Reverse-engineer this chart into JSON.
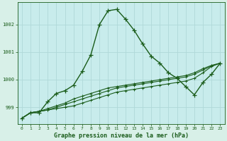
{
  "background_color": "#d8f0e8",
  "plot_bg_color": "#c8ecec",
  "grid_color": "#b0d8d8",
  "line_color": "#1a5c1a",
  "x_labels": [
    "0",
    "1",
    "2",
    "3",
    "4",
    "5",
    "6",
    "7",
    "8",
    "9",
    "10",
    "11",
    "12",
    "13",
    "14",
    "15",
    "16",
    "17",
    "18",
    "19",
    "20",
    "21",
    "22",
    "23"
  ],
  "ylim": [
    998.4,
    1002.8
  ],
  "yticks": [
    999,
    1000,
    1001,
    1002
  ],
  "xlabel": "Graphe pression niveau de la mer (hPa)",
  "series": [
    [
      998.6,
      998.8,
      998.8,
      999.2,
      999.5,
      999.6,
      999.8,
      1000.3,
      1000.9,
      1002.0,
      1002.5,
      1002.55,
      1002.2,
      1001.8,
      1001.3,
      1000.85,
      1000.6,
      1000.25,
      1000.05,
      999.75,
      999.45,
      999.9,
      1000.2,
      1000.6
    ],
    [
      998.6,
      998.8,
      998.85,
      998.9,
      999.0,
      999.1,
      999.2,
      999.3,
      999.4,
      999.5,
      999.6,
      999.7,
      999.75,
      999.8,
      999.85,
      999.9,
      999.95,
      1000.0,
      1000.05,
      1000.1,
      1000.2,
      1000.35,
      1000.5,
      1000.6
    ],
    [
      998.6,
      998.8,
      998.85,
      998.95,
      999.05,
      999.15,
      999.3,
      999.4,
      999.5,
      999.6,
      999.7,
      999.75,
      999.8,
      999.85,
      999.9,
      999.95,
      1000.0,
      1000.05,
      1000.1,
      1000.15,
      1000.25,
      1000.4,
      1000.52,
      1000.6
    ],
    [
      998.6,
      998.8,
      998.85,
      998.9,
      998.95,
      999.0,
      999.05,
      999.15,
      999.25,
      999.35,
      999.45,
      999.55,
      999.6,
      999.65,
      999.7,
      999.75,
      999.8,
      999.85,
      999.9,
      999.95,
      1000.05,
      1000.25,
      1000.48,
      1000.6
    ]
  ]
}
